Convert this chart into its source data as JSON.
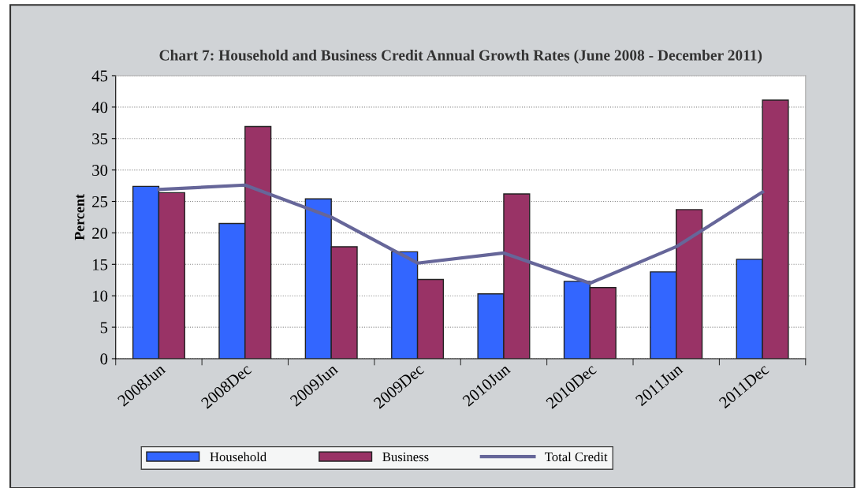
{
  "chart_data": {
    "type": "bar",
    "title": "Chart 7: Household and Business Credit Annual Growth Rates (June 2008 - December 2011)",
    "ylabel": "Percent",
    "categories": [
      "2008Jun",
      "2008Dec",
      "2009Jun",
      "2009Dec",
      "2010Jun",
      "2010Dec",
      "2011Jun",
      "2011Dec"
    ],
    "series": [
      {
        "name": "Household",
        "color": "#3366ff",
        "values": [
          27.4,
          21.5,
          25.4,
          17.0,
          10.3,
          12.3,
          13.8,
          15.8
        ]
      },
      {
        "name": "Business",
        "color": "#993366",
        "values": [
          26.4,
          36.9,
          17.8,
          12.6,
          26.2,
          11.3,
          23.7,
          41.1
        ]
      },
      {
        "name": "Total Credit",
        "type": "line",
        "color": "#666699",
        "values": [
          26.9,
          27.6,
          22.5,
          15.2,
          16.8,
          12.0,
          17.8,
          26.5
        ]
      }
    ],
    "ylim": [
      0,
      45
    ],
    "yticks": [
      0,
      5,
      10,
      15,
      20,
      25,
      30,
      35,
      40,
      45
    ],
    "grid": "y",
    "legend": "bottom"
  }
}
